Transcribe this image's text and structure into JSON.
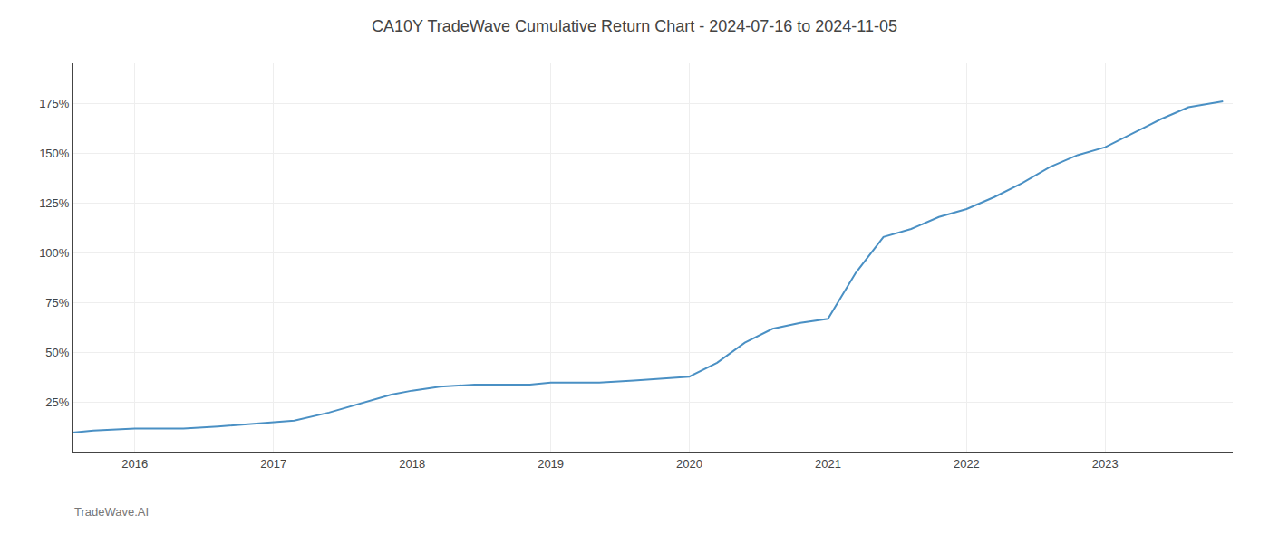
{
  "chart_data": {
    "type": "line",
    "title": "CA10Y TradeWave Cumulative Return Chart - 2024-07-16 to 2024-11-05",
    "annotations": [
      "TradeWave.AI"
    ],
    "x": [
      2015.55,
      2015.7,
      2016.0,
      2016.15,
      2016.35,
      2016.6,
      2016.8,
      2017.0,
      2017.15,
      2017.4,
      2017.65,
      2017.85,
      2018.0,
      2018.2,
      2018.45,
      2018.65,
      2018.85,
      2019.0,
      2019.15,
      2019.35,
      2019.6,
      2019.8,
      2020.0,
      2020.2,
      2020.4,
      2020.6,
      2020.8,
      2021.0,
      2021.2,
      2021.4,
      2021.6,
      2021.8,
      2022.0,
      2022.2,
      2022.4,
      2022.6,
      2022.8,
      2023.0,
      2023.2,
      2023.4,
      2023.6,
      2023.85
    ],
    "values": [
      10,
      11,
      12,
      12,
      12,
      13,
      14,
      15,
      16,
      20,
      25,
      29,
      31,
      33,
      34,
      34,
      34,
      35,
      35,
      35,
      36,
      37,
      38,
      45,
      55,
      62,
      65,
      67,
      90,
      108,
      112,
      118,
      122,
      128,
      135,
      143,
      149,
      153,
      160,
      167,
      173,
      176
    ],
    "color": "#4a90c4",
    "xlim": [
      2015.55,
      2023.92
    ],
    "xticks": [
      2016,
      2017,
      2018,
      2019,
      2020,
      2021,
      2022,
      2023
    ],
    "ylim": [
      0,
      195
    ],
    "yticks": [
      {
        "value": 25,
        "label": "25%"
      },
      {
        "value": 50,
        "label": "50%"
      },
      {
        "value": 75,
        "label": "75%"
      },
      {
        "value": 100,
        "label": "100%"
      },
      {
        "value": 125,
        "label": "125%"
      },
      {
        "value": 150,
        "label": "150%"
      },
      {
        "value": 175,
        "label": "175%"
      }
    ],
    "grid": true
  }
}
